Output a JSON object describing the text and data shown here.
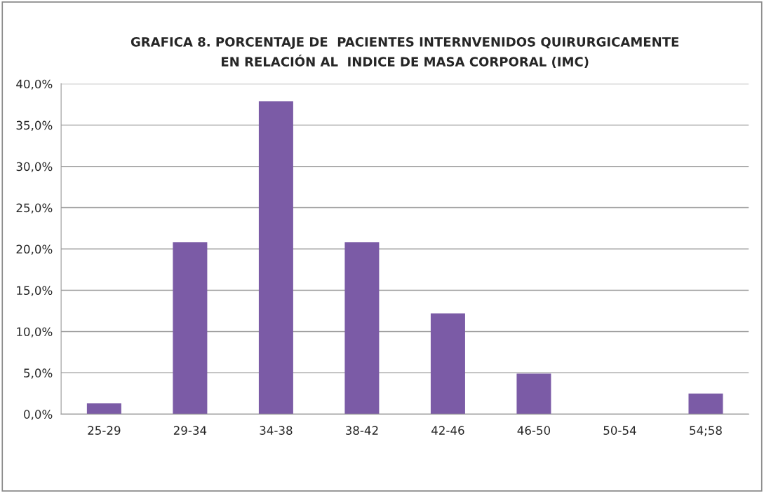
{
  "chart_data": {
    "type": "bar",
    "title": "GRAFICA 8. PORCENTAJE DE  PACIENTES INTERNVENIDOS QUIRURGICAMENTE\nEN RELACIÓN AL  INDICE DE MASA CORPORAL (IMC)",
    "categories": [
      "25-29",
      "29-34",
      "34-38",
      "38-42",
      "42-46",
      "46-50",
      "50-54",
      "54;58"
    ],
    "values": [
      1.3,
      20.8,
      37.9,
      20.8,
      12.2,
      4.9,
      0,
      2.5
    ],
    "color": "#7b5ba6",
    "ylim": [
      0,
      40
    ],
    "yticks": [
      {
        "value": 0,
        "label": "0,0%"
      },
      {
        "value": 5,
        "label": "5,0%"
      },
      {
        "value": 10,
        "label": "10,0%"
      },
      {
        "value": 15,
        "label": "15,0%"
      },
      {
        "value": 20,
        "label": "20,0%"
      },
      {
        "value": 25,
        "label": "25,0%"
      },
      {
        "value": 30,
        "label": "30,0%"
      },
      {
        "value": 35,
        "label": "35,0%"
      },
      {
        "value": 40,
        "label": "40,0%"
      }
    ],
    "grid": "y"
  }
}
